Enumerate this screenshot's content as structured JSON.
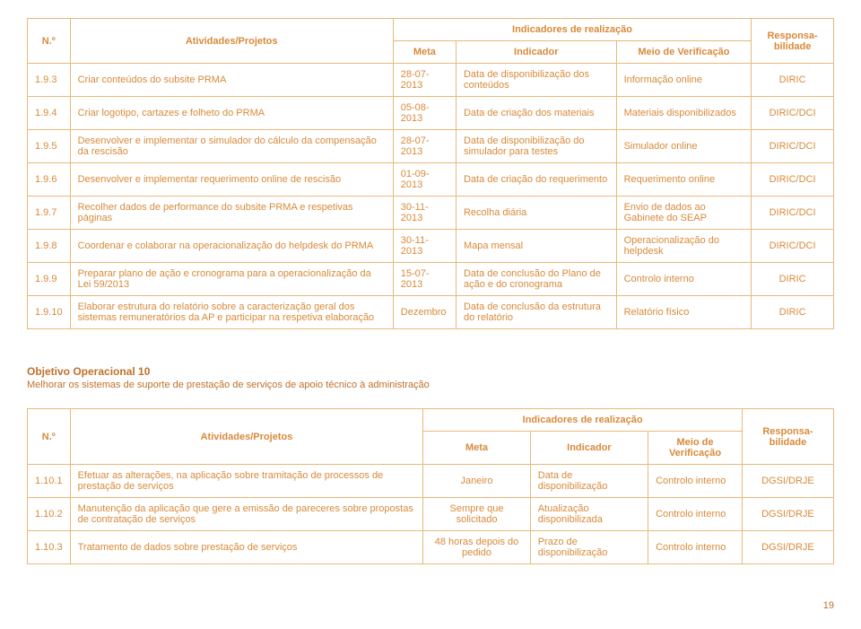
{
  "colors": {
    "text": "#d88a3a",
    "border": "#e8b97a",
    "heading": "#c0702a",
    "background": "#ffffff"
  },
  "font_family": "Verdana, Geneva, sans-serif",
  "font_size_base": 11,
  "table1": {
    "header": {
      "no": "N.º",
      "atividades": "Atividades/Projetos",
      "indicadores_group": "Indicadores de realização",
      "meta": "Meta",
      "indicador": "Indicador",
      "meio": "Meio de Verificação",
      "responsa": "Responsa-bilidade"
    },
    "rows": [
      {
        "no": "1.9.3",
        "atividade": "Criar conteúdos do subsite PRMA",
        "meta": "28-07-2013",
        "indicador": "Data de disponibilização dos conteúdos",
        "meio": "Informação online",
        "resp": "DIRIC"
      },
      {
        "no": "1.9.4",
        "atividade": "Criar logotipo, cartazes e folheto do PRMA",
        "meta": "05-08-2013",
        "indicador": "Data de criação dos materiais",
        "meio": "Materiais disponibilizados",
        "resp": "DIRIC/DCI"
      },
      {
        "no": "1.9.5",
        "atividade": "Desenvolver e implementar o simulador do cálculo da compensação da rescisão",
        "meta": "28-07-2013",
        "indicador": "Data de disponibilização do simulador para testes",
        "meio": "Simulador online",
        "resp": "DIRIC/DCI"
      },
      {
        "no": "1.9.6",
        "atividade": "Desenvolver e implementar requerimento online de rescisão",
        "meta": "01-09-2013",
        "indicador": "Data de criação do requerimento",
        "meio": "Requerimento online",
        "resp": "DIRIC/DCI"
      },
      {
        "no": "1.9.7",
        "atividade": "Recolher dados de performance do subsite PRMA e respetivas páginas",
        "meta": "30-11-2013",
        "indicador": "Recolha diária",
        "meio": "Envio de dados ao Gabinete do SEAP",
        "resp": "DIRIC/DCI"
      },
      {
        "no": "1.9.8",
        "atividade": "Coordenar e colaborar na operacionalização do helpdesk do PRMA",
        "meta": "30-11-2013",
        "indicador": "Mapa mensal",
        "meio": "Operacionalização do helpdesk",
        "resp": "DIRIC/DCI"
      },
      {
        "no": "1.9.9",
        "atividade": "Preparar plano de ação e cronograma para a operacionalização da Lei 59/2013",
        "meta": "15-07-2013",
        "indicador": "Data de conclusão do Plano de ação e do cronograma",
        "meio": "Controlo interno",
        "resp": "DIRIC"
      },
      {
        "no": "1.9.10",
        "atividade": "Elaborar estrutura do relatório sobre a caracterização geral dos sistemas remuneratórios da AP e participar na respetiva elaboração",
        "meta": "Dezembro",
        "indicador": "Data de conclusão da estrutura do relatório",
        "meio": "Relatório físico",
        "resp": "DIRIC"
      }
    ]
  },
  "objective": {
    "title": "Objetivo Operacional 10",
    "desc": "Melhorar os sistemas de suporte de prestação de serviços de apoio técnico à administração"
  },
  "table2": {
    "header": {
      "no": "N.º",
      "atividades": "Atividades/Projetos",
      "indicadores_group": "Indicadores de realização",
      "meta": "Meta",
      "indicador": "Indicador",
      "meio": "Meio de Verificação",
      "responsa": "Responsa-bilidade"
    },
    "rows": [
      {
        "no": "1.10.1",
        "atividade": "Efetuar as alterações, na aplicação sobre tramitação de processos de prestação de serviços",
        "meta": "Janeiro",
        "indicador": "Data de disponibilização",
        "meio": "Controlo interno",
        "resp": "DGSI/DRJE"
      },
      {
        "no": "1.10.2",
        "atividade": "Manutenção da aplicação que gere a emissão de pareceres sobre propostas de contratação de serviços",
        "meta": "Sempre que solicitado",
        "indicador": "Atualização disponibilizada",
        "meio": "Controlo interno",
        "resp": "DGSI/DRJE"
      },
      {
        "no": "1.10.3",
        "atividade": "Tratamento de dados sobre prestação de serviços",
        "meta": "48 horas depois do pedido",
        "indicador": "Prazo de disponibilização",
        "meio": "Controlo interno",
        "resp": "DGSI/DRJE"
      }
    ]
  },
  "page_number": "19"
}
